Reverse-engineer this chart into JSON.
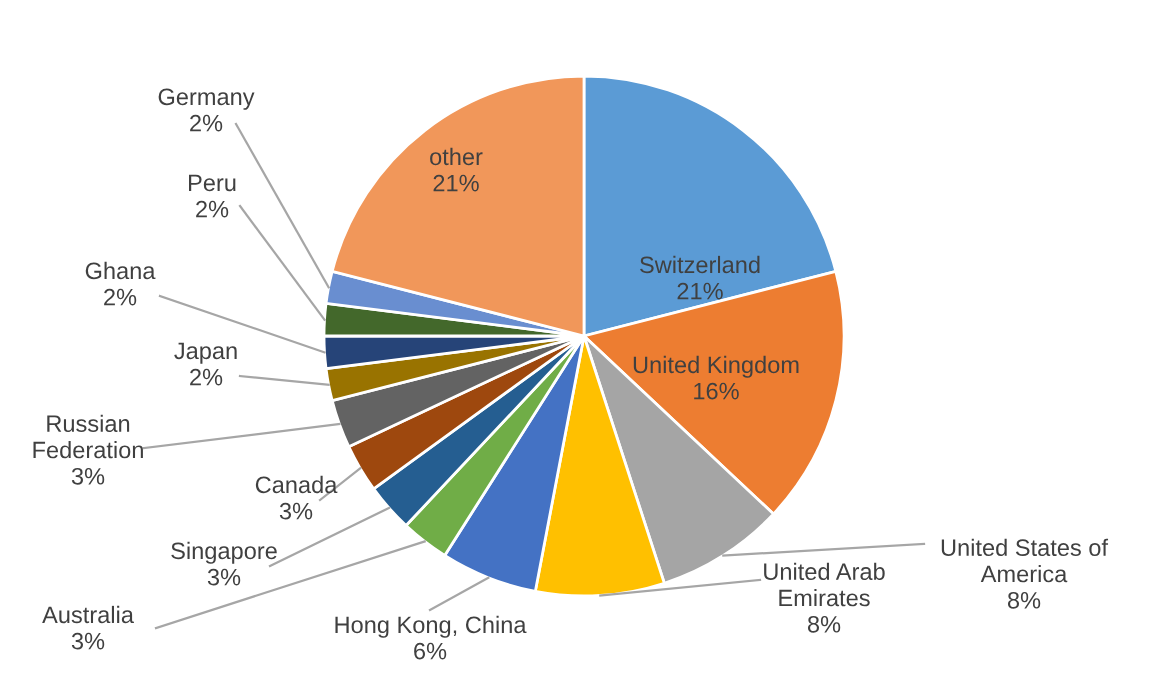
{
  "chart_data": {
    "type": "pie",
    "categories": [
      "Switzerland",
      "United Kingdom",
      "United States of\nAmerica",
      "United Arab\nEmirates",
      "Hong Kong, China",
      "Australia",
      "Singapore",
      "Canada",
      "Russian\nFederation",
      "Japan",
      "Ghana",
      "Peru",
      "Germany",
      "other"
    ],
    "values": [
      21,
      16,
      8,
      8,
      6,
      3,
      3,
      3,
      3,
      2,
      2,
      2,
      2,
      21
    ],
    "value_labels": [
      "21%",
      "16%",
      "8%",
      "8%",
      "6%",
      "3%",
      "3%",
      "3%",
      "3%",
      "2%",
      "2%",
      "2%",
      "2%",
      "21%"
    ],
    "colors": [
      "#5b9bd5",
      "#ed7d31",
      "#a5a5a5",
      "#ffc000",
      "#4472c4",
      "#70ad47",
      "#255e91",
      "#9e480e",
      "#636363",
      "#997300",
      "#264478",
      "#43682b",
      "#698ed0",
      "#f1975a"
    ],
    "legend": false
  }
}
